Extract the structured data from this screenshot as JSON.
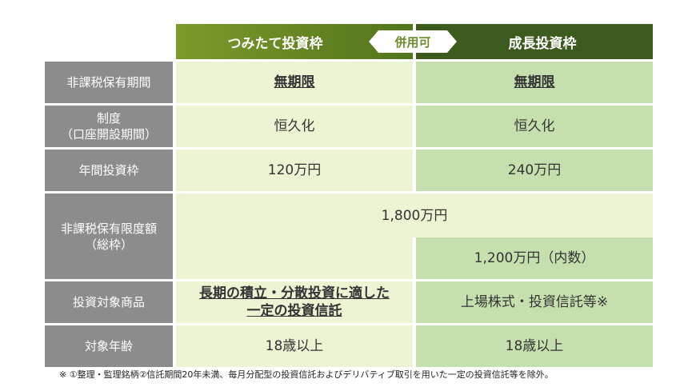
{
  "header": {
    "tsumitate": "つみたて投資枠",
    "badge": "併用可",
    "growth": "成長投資枠"
  },
  "rows": {
    "holding_period": {
      "label": "非課税保有期間",
      "tsumitate": "無期限",
      "growth": "無期限"
    },
    "system": {
      "label_line1": "制度",
      "label_line2": "（口座開設期間）",
      "tsumitate": "恒久化",
      "growth": "恒久化"
    },
    "annual_limit": {
      "label": "年間投資枠",
      "tsumitate": "120万円",
      "growth": "240万円"
    },
    "holding_limit": {
      "label_line1": "非課税保有限度額",
      "label_line2": "（総枠）",
      "total": "1,800万円",
      "growth": "1,200万円（内数）"
    },
    "products": {
      "label": "投資対象商品",
      "tsumitate_line1": "長期の積立・分散投資に適した",
      "tsumitate_line2": "一定の投資信託",
      "growth": "上場株式・投資信託等※"
    },
    "age": {
      "label": "対象年齢",
      "tsumitate": "18歳以上",
      "growth": "18歳以上"
    }
  },
  "footnote": "※ ①整理・監理銘柄②信託期間20年未満、毎月分配型の投資信託およびデリバティブ取引を用いた一定の投資信託等を除外。"
}
